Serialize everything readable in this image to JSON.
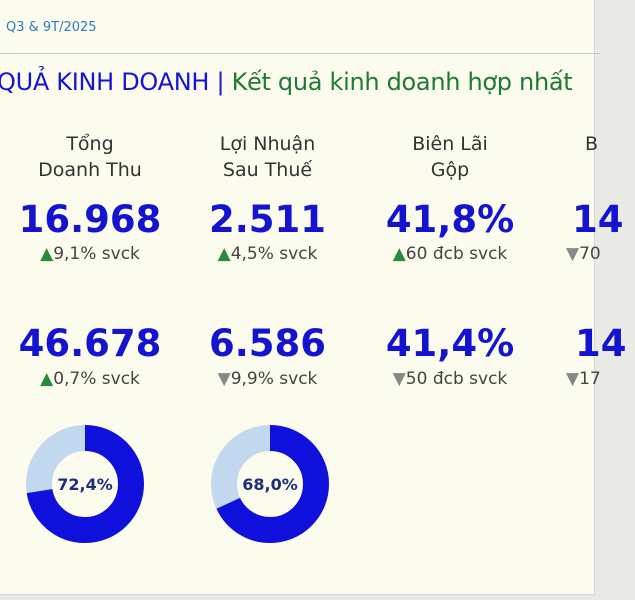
{
  "header": {
    "tag": "Q3 & 9T/2025"
  },
  "title": {
    "part1": "QUẢ KINH DOANH | ",
    "part2": "Kết quả kinh doanh hợp nhất"
  },
  "columns": [
    {
      "label_line1": "Tổng",
      "label_line2": "Doanh Thu",
      "q_value": "16.968",
      "q_arrow": "up",
      "q_delta": "9,1% svck",
      "ytd_value": "46.678",
      "ytd_arrow": "up",
      "ytd_delta": "0,7% svck",
      "donut_label": "72,4%",
      "donut_fraction": 0.724
    },
    {
      "label_line1": "Lợi Nhuận",
      "label_line2": "Sau Thuế",
      "q_value": "2.511",
      "q_arrow": "up",
      "q_delta": "4,5% svck",
      "ytd_value": "6.586",
      "ytd_arrow": "down",
      "ytd_delta": "9,9% svck",
      "donut_label": "68,0%",
      "donut_fraction": 0.68
    },
    {
      "label_line1": "Biên Lãi",
      "label_line2": "Gộp",
      "q_value": "41,8%",
      "q_arrow": "up",
      "q_delta": "60 đcb svck",
      "ytd_value": "41,4%",
      "ytd_arrow": "down",
      "ytd_delta": "50 đcb svck"
    },
    {
      "label_line1": "B",
      "label_line2": "",
      "q_value": "14",
      "q_arrow": "down",
      "q_delta": "70",
      "ytd_value": "14",
      "ytd_arrow": "down",
      "ytd_delta": "17"
    }
  ],
  "colors": {
    "accent": "#1414d0",
    "green": "#1f7a32",
    "donut_fill": "#1010dd",
    "donut_track": "#c2d8ef"
  }
}
